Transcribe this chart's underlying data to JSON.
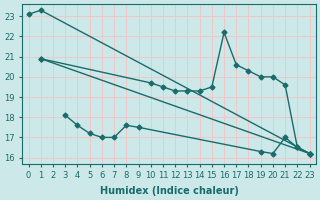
{
  "xlabel": "Humidex (Indice chaleur)",
  "bg_color": "#cce8e8",
  "line_color": "#1a6b6b",
  "grid_color": "#f0c8c8",
  "xlim": [
    -0.5,
    23.5
  ],
  "ylim": [
    15.7,
    23.6
  ],
  "yticks": [
    16,
    17,
    18,
    19,
    20,
    21,
    22,
    23
  ],
  "xticks": [
    0,
    1,
    2,
    3,
    4,
    5,
    6,
    7,
    8,
    9,
    10,
    11,
    12,
    13,
    14,
    15,
    16,
    17,
    18,
    19,
    20,
    21,
    22,
    23
  ],
  "line1_x": [
    0,
    1,
    23
  ],
  "line1_y": [
    23.1,
    23.3,
    16.2
  ],
  "line2_x": [
    1,
    10,
    11,
    12,
    13,
    14,
    15,
    16,
    17,
    18,
    19,
    20,
    21,
    22,
    23
  ],
  "line2_y": [
    20.9,
    19.7,
    19.5,
    19.3,
    19.3,
    19.3,
    19.5,
    22.2,
    20.6,
    20.3,
    20.0,
    20.0,
    19.6,
    16.5,
    16.2
  ],
  "line3_x": [
    1,
    23
  ],
  "line3_y": [
    20.9,
    16.2
  ],
  "line4_x": [
    3,
    4,
    5,
    6,
    7,
    8,
    9,
    19,
    20,
    21,
    22,
    23
  ],
  "line4_y": [
    18.1,
    17.6,
    17.2,
    17.0,
    17.0,
    17.6,
    17.5,
    16.3,
    16.2,
    17.0,
    16.5,
    16.2
  ],
  "marker": "D",
  "markersize": 2.5,
  "linewidth": 1.0
}
